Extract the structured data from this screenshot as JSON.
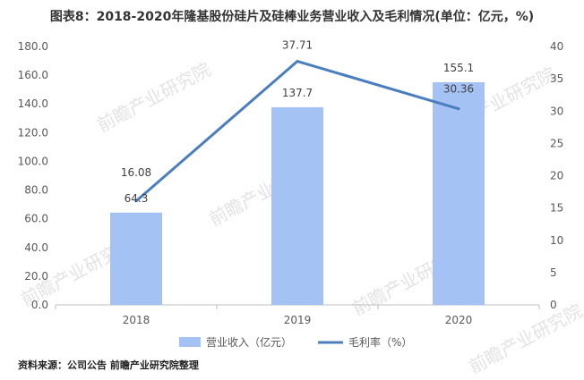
{
  "title": "图表8：2018-2020年隆基股份硅片及硅棒业务营业收入及毛利情况(单位：亿元，%)",
  "source": "资料来源：公司公告 前瞻产业研究院整理",
  "watermark": "前瞻产业研究院",
  "colors": {
    "bar": "#a4c2f4",
    "line": "#4a7ebf",
    "axis": "#bfbfbf",
    "grid": "#d9d9d9",
    "text": "#595959"
  },
  "chart_data": {
    "type": "bar",
    "categories": [
      "2018",
      "2019",
      "2020"
    ],
    "series": [
      {
        "name": "营业收入（亿元）",
        "type": "bar",
        "axis": "left",
        "values": [
          64.3,
          137.7,
          155.1
        ],
        "labels": [
          "64.3",
          "137.7",
          "155.1"
        ]
      },
      {
        "name": "毛利率（%）",
        "type": "line",
        "axis": "right",
        "values": [
          16.08,
          37.71,
          30.36
        ],
        "labels": [
          "16.08",
          "37.71",
          "30.36"
        ]
      }
    ],
    "ylim_left": [
      0,
      180
    ],
    "yticks_left": [
      "0.0",
      "20.0",
      "40.0",
      "60.0",
      "80.0",
      "100.0",
      "120.0",
      "140.0",
      "160.0",
      "180.0"
    ],
    "ylim_right": [
      0,
      40
    ],
    "yticks_right": [
      "0",
      "5",
      "10",
      "15",
      "20",
      "25",
      "30",
      "35",
      "40"
    ],
    "grid": false,
    "legend": "bottom"
  }
}
